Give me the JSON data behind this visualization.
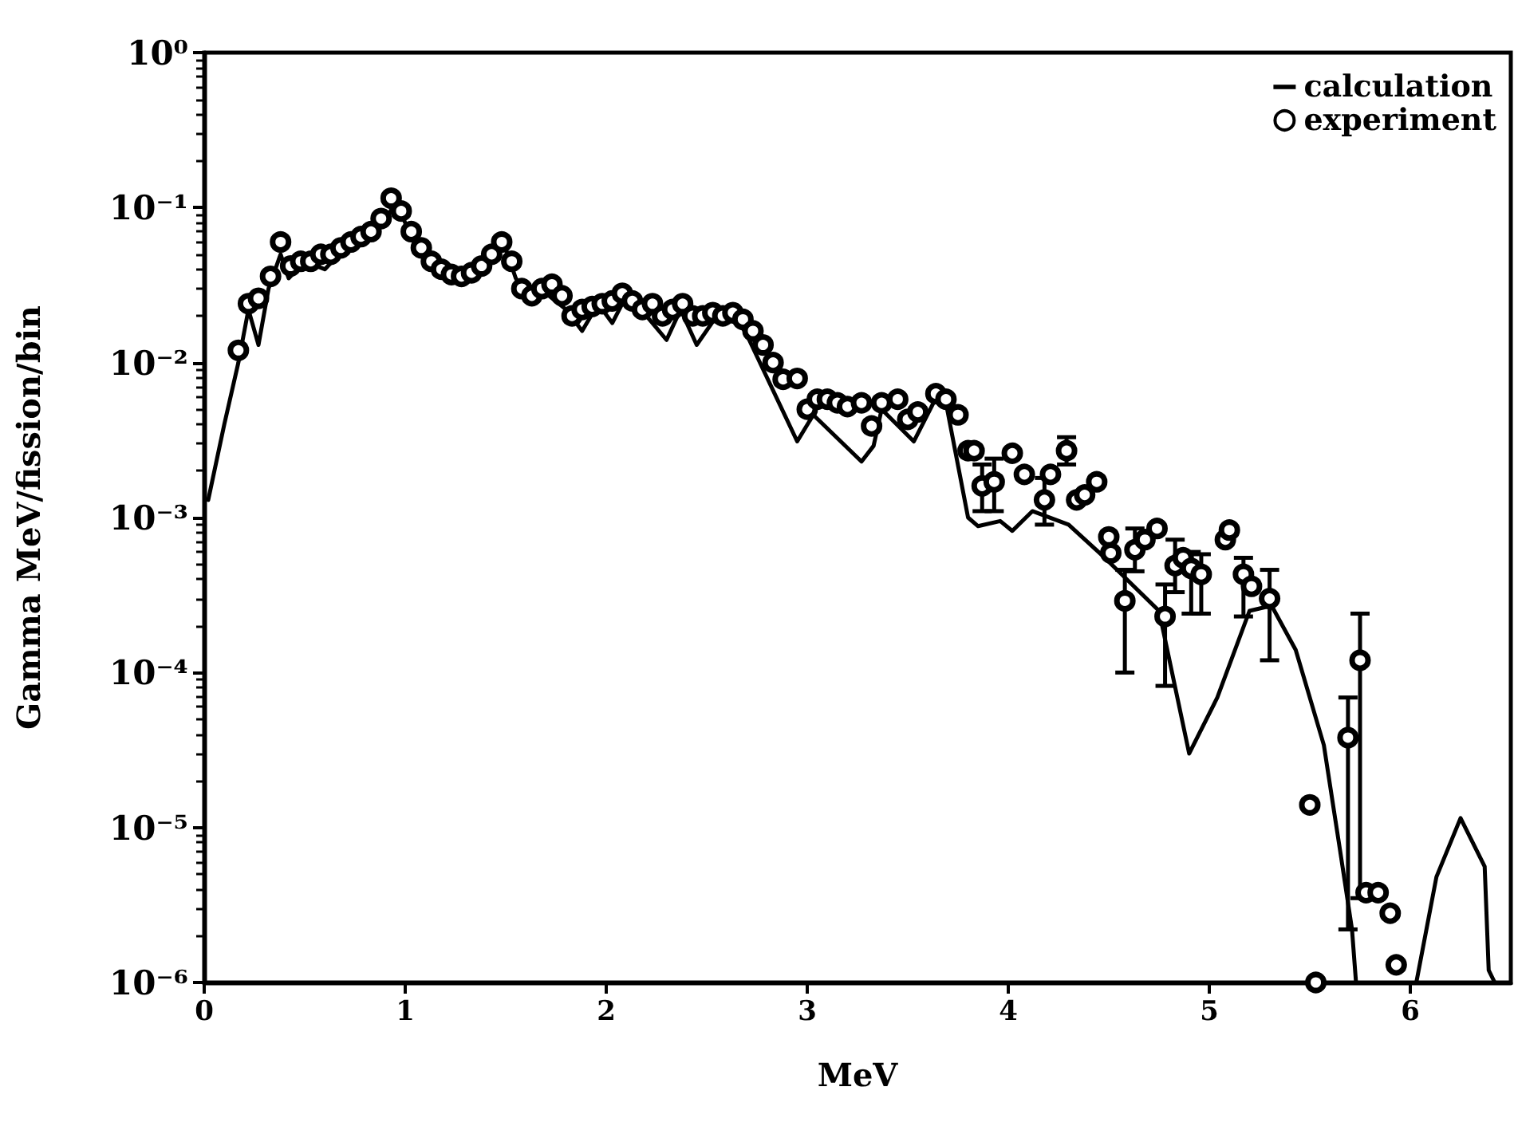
{
  "chart_data": {
    "type": "line",
    "xlabel": "MeV",
    "ylabel": "Gamma MeV/fission/bin",
    "xlim": [
      0,
      6.5
    ],
    "xticks": [
      0,
      1,
      2,
      3,
      4,
      5,
      6
    ],
    "ylim": [
      1e-06,
      1
    ],
    "yticks": [
      {
        "value": 1,
        "label": "10⁰"
      },
      {
        "value": 0.1,
        "label": "10⁻¹"
      },
      {
        "value": 0.01,
        "label": "10⁻²"
      },
      {
        "value": 0.001,
        "label": "10⁻³"
      },
      {
        "value": 0.0001,
        "label": "10⁻⁴"
      },
      {
        "value": 1e-05,
        "label": "10⁻⁵"
      },
      {
        "value": 1e-06,
        "label": "10⁻⁶"
      }
    ],
    "log": "y",
    "grid": false,
    "legend": "top right",
    "series": [
      {
        "name": "calculation",
        "color": "#000000",
        "marker": "none",
        "line_style": "solid",
        "x": [
          0.02,
          0.1,
          0.17,
          0.22,
          0.27,
          0.32,
          0.38,
          0.42,
          0.5,
          0.6,
          0.7,
          0.8,
          0.9,
          0.95,
          1.02,
          1.1,
          1.2,
          1.3,
          1.4,
          1.48,
          1.55,
          1.62,
          1.7,
          1.8,
          1.88,
          1.96,
          2.03,
          2.1,
          2.2,
          2.3,
          2.37,
          2.45,
          2.55,
          2.65,
          2.69,
          2.95,
          3.03,
          3.27,
          3.33,
          3.37,
          3.53,
          3.64,
          3.69,
          3.8,
          3.85,
          3.96,
          4.02,
          4.12,
          4.3,
          4.48,
          4.75,
          4.9,
          5.04,
          5.2,
          5.31,
          5.43,
          5.57,
          5.65,
          5.71,
          5.73,
          5.85,
          6.03,
          6.13,
          6.25,
          6.37,
          6.39,
          6.42
        ],
        "values": [
          0.0013,
          0.004,
          0.01,
          0.022,
          0.013,
          0.03,
          0.05,
          0.035,
          0.045,
          0.04,
          0.055,
          0.06,
          0.08,
          0.11,
          0.07,
          0.05,
          0.038,
          0.034,
          0.04,
          0.065,
          0.035,
          0.025,
          0.028,
          0.022,
          0.016,
          0.024,
          0.018,
          0.027,
          0.02,
          0.014,
          0.022,
          0.013,
          0.02,
          0.018,
          0.016,
          0.0031,
          0.0046,
          0.0023,
          0.0029,
          0.005,
          0.0031,
          0.0059,
          0.0055,
          0.001,
          0.00088,
          0.00095,
          0.00082,
          0.0011,
          0.0009,
          0.00055,
          0.00025,
          3e-05,
          6.9e-05,
          0.00025,
          0.00027,
          0.00014,
          3.4e-05,
          7.2e-06,
          2.2e-06,
          1e-06,
          null,
          1e-06,
          4.8e-06,
          1.15e-05,
          5.6e-06,
          1.2e-06,
          1e-06
        ]
      },
      {
        "name": "experiment",
        "type": "scatter",
        "color": "#000000",
        "marker": "circle",
        "x": [
          0.17,
          0.22,
          0.27,
          0.33,
          0.38,
          0.43,
          0.48,
          0.53,
          0.58,
          0.63,
          0.68,
          0.73,
          0.78,
          0.83,
          0.88,
          0.93,
          0.98,
          1.03,
          1.08,
          1.13,
          1.18,
          1.23,
          1.28,
          1.33,
          1.38,
          1.43,
          1.48,
          1.53,
          1.58,
          1.63,
          1.68,
          1.73,
          1.78,
          1.83,
          1.88,
          1.93,
          1.98,
          2.03,
          2.08,
          2.13,
          2.18,
          2.23,
          2.28,
          2.33,
          2.38,
          2.43,
          2.48,
          2.53,
          2.58,
          2.63,
          2.68,
          2.73,
          2.78,
          2.83,
          2.88,
          2.95,
          3.0,
          3.05,
          3.1,
          3.15,
          3.2,
          3.27,
          3.32,
          3.37,
          3.45,
          3.5,
          3.55,
          3.64,
          3.69,
          3.75,
          3.8,
          3.83,
          3.87,
          3.93,
          4.02,
          4.08,
          4.18,
          4.21,
          4.29,
          4.34,
          4.38,
          4.44,
          4.5,
          4.51,
          4.58,
          4.63,
          4.68,
          4.74,
          4.78,
          4.83,
          4.87,
          4.91,
          4.96,
          5.08,
          5.1,
          5.17,
          5.21,
          5.3,
          5.5,
          5.53,
          5.69,
          5.75,
          5.78,
          5.84,
          5.9,
          5.93
        ],
        "values": [
          0.012,
          0.024,
          0.026,
          0.036,
          0.06,
          0.042,
          0.045,
          0.045,
          0.05,
          0.05,
          0.055,
          0.06,
          0.065,
          0.07,
          0.085,
          0.115,
          0.095,
          0.07,
          0.055,
          0.045,
          0.04,
          0.037,
          0.036,
          0.038,
          0.042,
          0.05,
          0.06,
          0.045,
          0.03,
          0.027,
          0.03,
          0.032,
          0.027,
          0.02,
          0.022,
          0.023,
          0.024,
          0.025,
          0.028,
          0.025,
          0.022,
          0.024,
          0.02,
          0.022,
          0.024,
          0.02,
          0.02,
          0.021,
          0.02,
          0.021,
          0.019,
          0.016,
          0.013,
          0.01,
          0.0078,
          0.0079,
          0.005,
          0.0058,
          0.0058,
          0.0055,
          0.0052,
          0.0055,
          0.0039,
          0.0055,
          0.0058,
          0.0043,
          0.0048,
          0.0063,
          0.0058,
          0.0046,
          0.0027,
          0.0027,
          0.0016,
          0.0017,
          0.0026,
          0.0019,
          0.0013,
          0.0019,
          0.0027,
          0.0013,
          0.0014,
          0.0017,
          0.00075,
          0.00059,
          0.00029,
          0.00062,
          0.00072,
          0.00085,
          0.00023,
          0.00049,
          0.00055,
          0.00047,
          0.00043,
          0.00072,
          0.00083,
          0.00043,
          0.00036,
          0.0003,
          1.4e-05,
          1e-06,
          3.8e-05,
          0.00012,
          3.8e-06,
          3.8e-06,
          2.8e-06,
          1.3e-06
        ],
        "errors": [
          null,
          null,
          null,
          null,
          null,
          null,
          null,
          null,
          null,
          null,
          null,
          null,
          null,
          null,
          null,
          null,
          null,
          null,
          null,
          null,
          null,
          null,
          null,
          null,
          null,
          null,
          null,
          null,
          null,
          null,
          null,
          null,
          null,
          null,
          null,
          null,
          null,
          null,
          null,
          null,
          null,
          null,
          null,
          null,
          null,
          null,
          null,
          null,
          null,
          null,
          null,
          null,
          null,
          null,
          null,
          null,
          null,
          null,
          null,
          null,
          null,
          null,
          null,
          null,
          null,
          null,
          null,
          null,
          null,
          null,
          null,
          null,
          [
            0.0011,
            0.0022
          ],
          [
            0.0011,
            0.0024
          ],
          null,
          null,
          [
            0.0009,
            0.0018
          ],
          null,
          [
            0.0022,
            0.0033
          ],
          null,
          null,
          null,
          null,
          null,
          [
            0.0001,
            0.00046
          ],
          [
            0.00045,
            0.00085
          ],
          null,
          null,
          [
            8.2e-05,
            0.00037
          ],
          [
            0.00033,
            0.00072
          ],
          null,
          [
            0.00024,
            0.0006
          ],
          [
            0.00024,
            0.00058
          ],
          null,
          null,
          [
            0.00023,
            0.00055
          ],
          null,
          [
            0.00012,
            0.00046
          ],
          null,
          null,
          [
            2.2e-06,
            6.9e-05
          ],
          [
            3.5e-06,
            0.00024
          ],
          null,
          null,
          null,
          null
        ]
      }
    ]
  }
}
